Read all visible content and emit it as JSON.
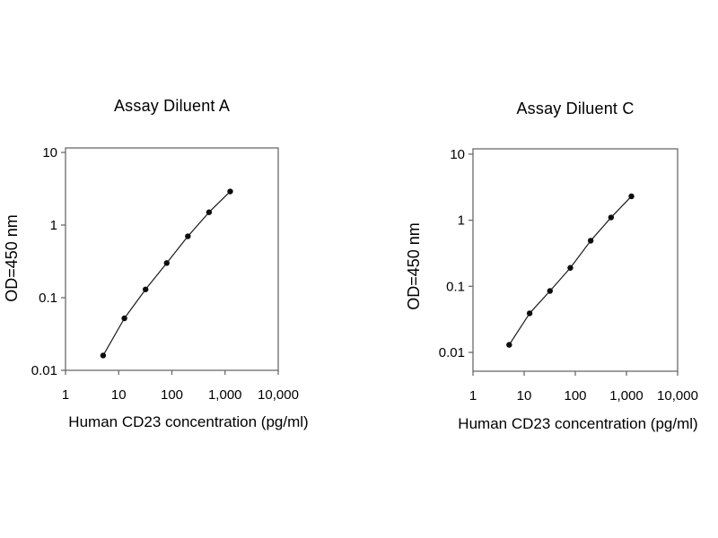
{
  "figure": {
    "background": "#ffffff",
    "text_color": "#000000",
    "axis_color": "#6a6a6a",
    "series_color": "#1a1a1a",
    "marker_color": "#0d0d0d"
  },
  "chart_data": [
    {
      "type": "line",
      "title": "Assay Diluent A",
      "xlabel": "Human CD23 concentration (pg/ml)",
      "ylabel": "OD=450 nm",
      "xscale": "log",
      "yscale": "log",
      "xlim": [
        1,
        10000
      ],
      "ylim": [
        0.01,
        10
      ],
      "grid": false,
      "legend": null,
      "marker": "filled-circle",
      "line_color": "#1a1a1a",
      "x_tick_labels": [
        "1",
        "10",
        "100",
        "1,000",
        "10,000"
      ],
      "y_tick_labels": [
        "0.01",
        "0.1",
        "1",
        "10"
      ],
      "x": [
        5.1,
        12.8,
        32,
        80,
        200,
        500,
        1250
      ],
      "y": [
        0.016,
        0.052,
        0.13,
        0.3,
        0.7,
        1.5,
        2.9
      ]
    },
    {
      "type": "line",
      "title": "Assay Diluent C",
      "xlabel": "Human CD23 concentration (pg/ml)",
      "ylabel": "OD=450 nm",
      "xscale": "log",
      "yscale": "log",
      "xlim": [
        1,
        10000
      ],
      "ylim": [
        0.005,
        10
      ],
      "grid": false,
      "legend": null,
      "marker": "filled-circle",
      "line_color": "#1a1a1a",
      "x_tick_labels": [
        "1",
        "10",
        "100",
        "1,000",
        "10,000"
      ],
      "y_tick_labels": [
        "0.01",
        "0.1",
        "1",
        "10"
      ],
      "x": [
        5.1,
        12.8,
        32,
        80,
        200,
        500,
        1250
      ],
      "y": [
        0.013,
        0.039,
        0.085,
        0.19,
        0.49,
        1.1,
        2.3
      ]
    }
  ]
}
